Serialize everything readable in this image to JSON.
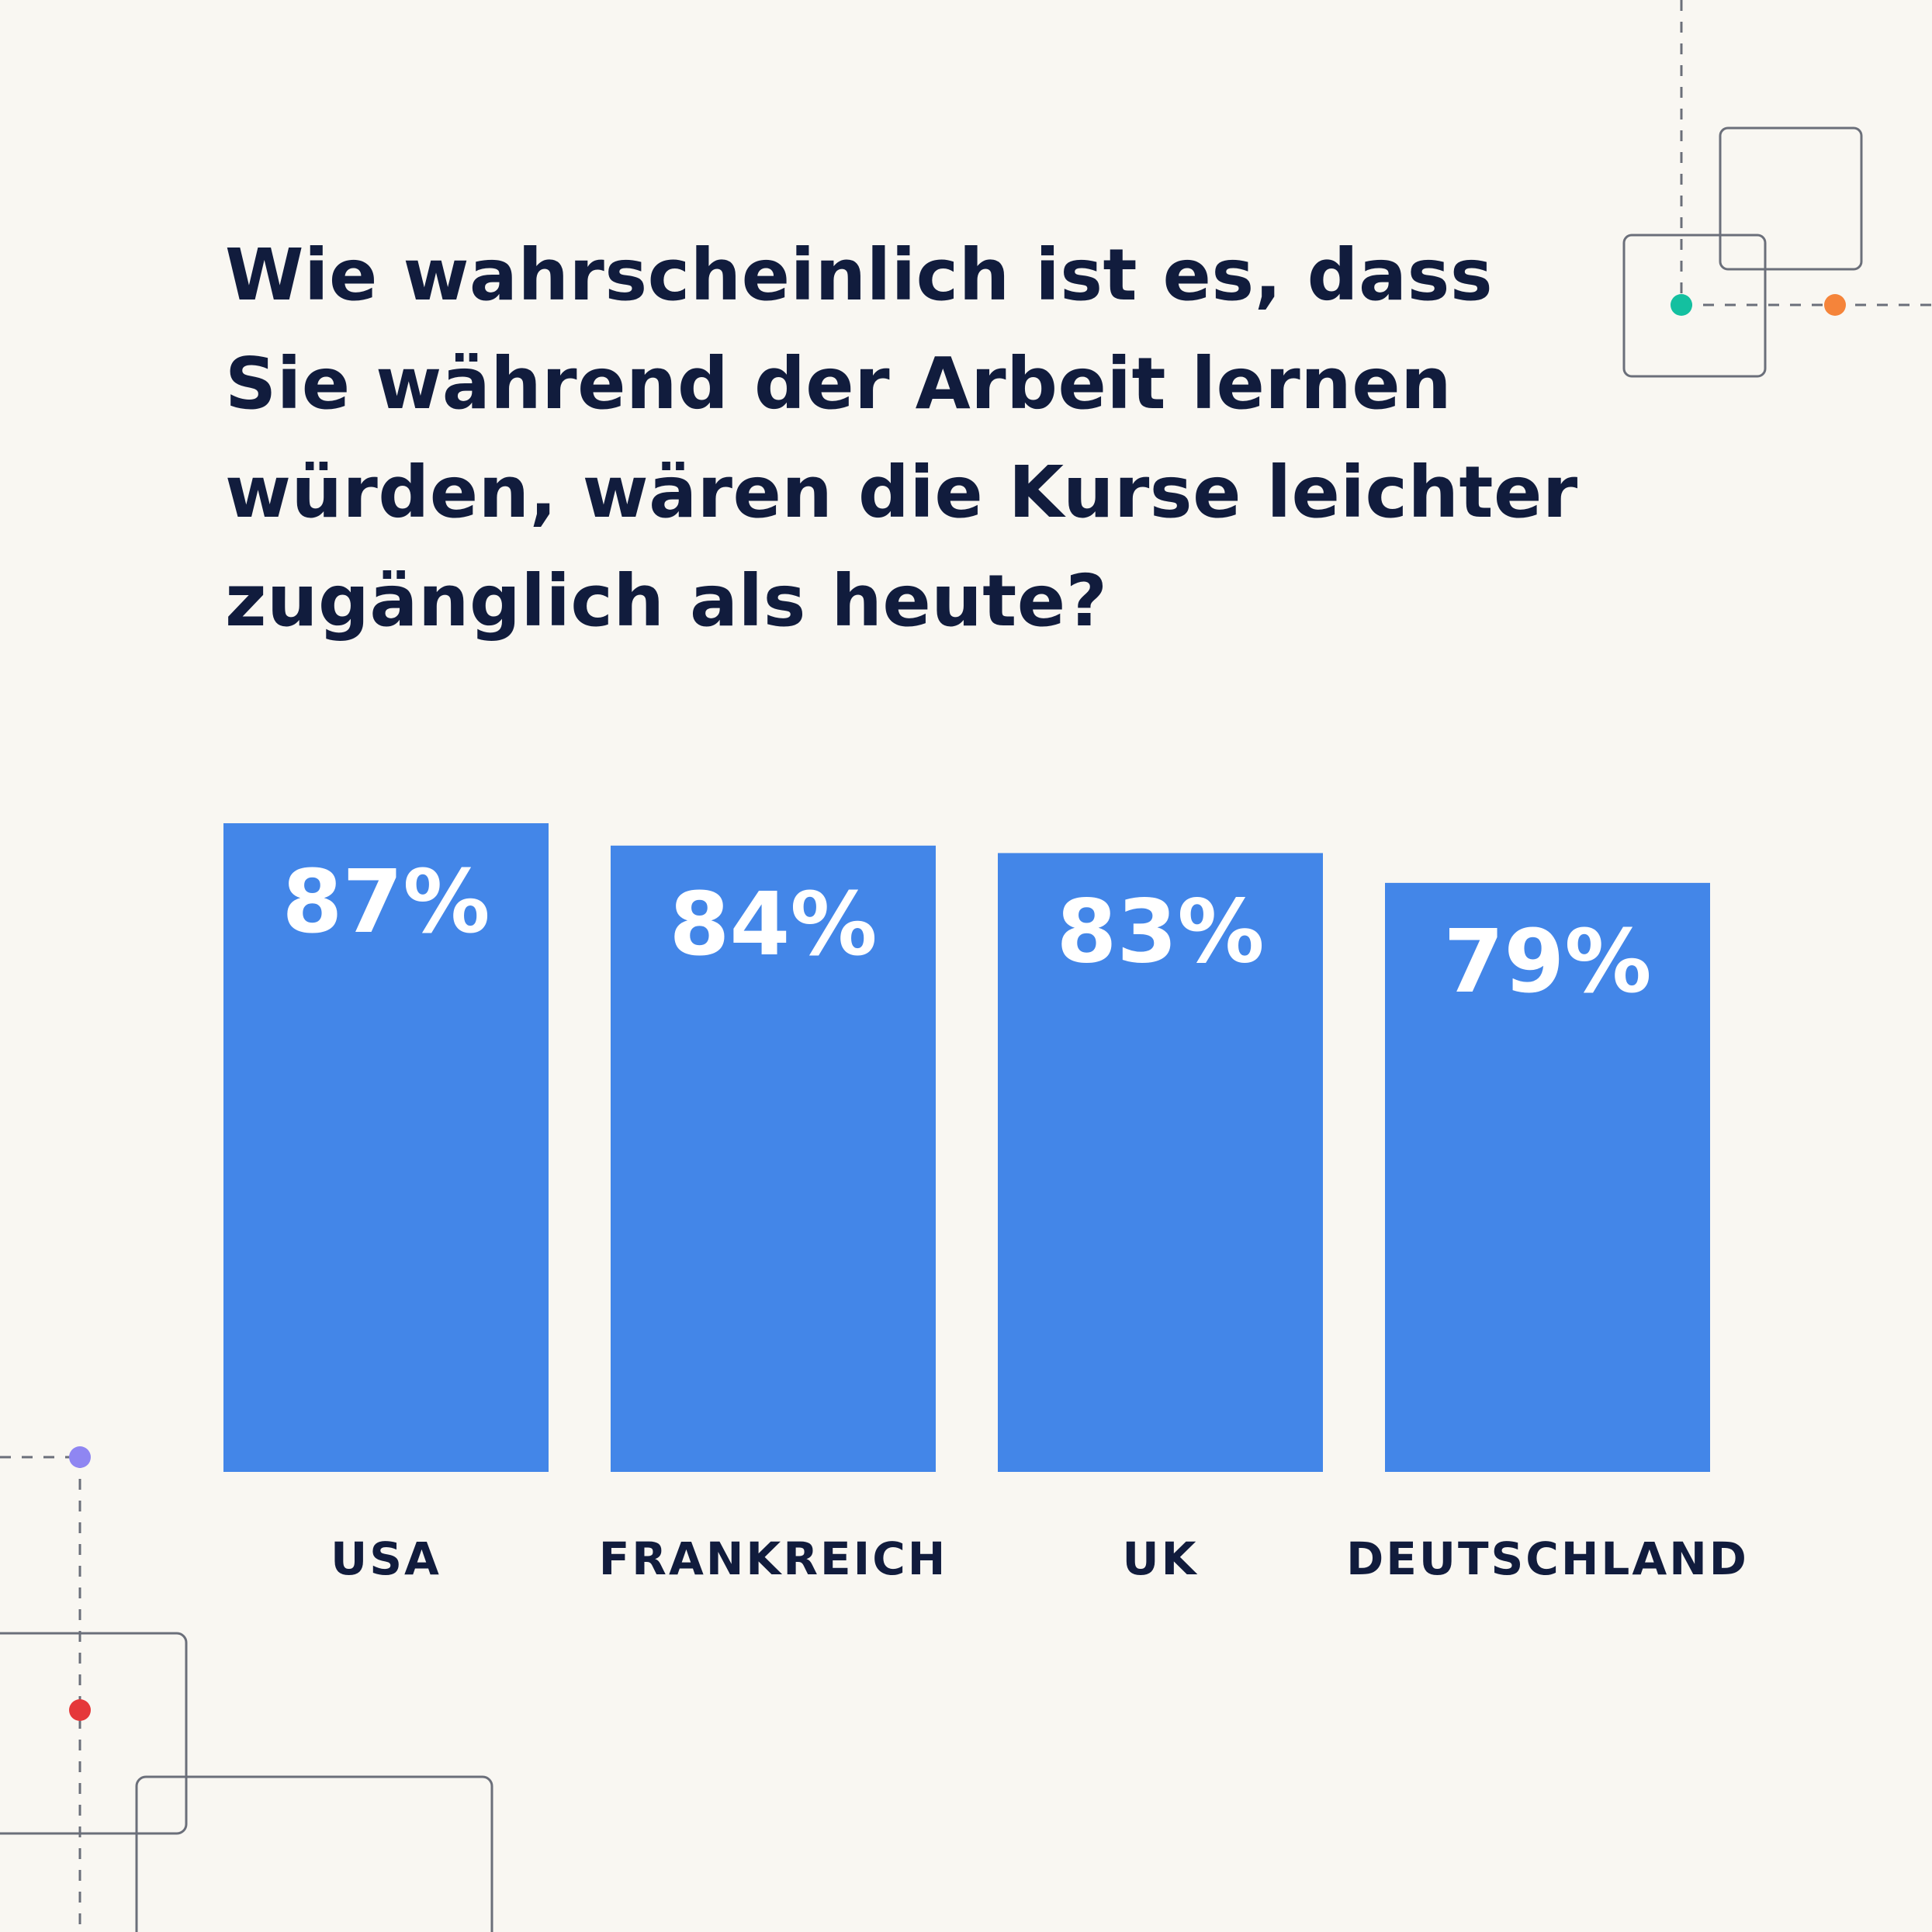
{
  "title": "Wie wahrscheinlich ist es, dass Sie während der Arbeit lernen würden, wären die Kurse leichter zugänglich als heute?",
  "colors": {
    "background": "#f9f7f2",
    "bar": "#4386e8",
    "text": "#111c3d",
    "dot_teal": "#14c0a0",
    "dot_orange": "#f5843a",
    "dot_purple": "#8f86f2",
    "dot_red": "#e5383a"
  },
  "chart_data": {
    "type": "bar",
    "title": "Wie wahrscheinlich ist es, dass Sie während der Arbeit lernen würden, wären die Kurse leichter zugänglich als heute?",
    "categories": [
      "USA",
      "FRANKREICH",
      "UK",
      "DEUTSCHLAND"
    ],
    "values": [
      87,
      84,
      83,
      79
    ],
    "data_labels": [
      "87%",
      "84%",
      "83%",
      "79%"
    ],
    "xlabel": "",
    "ylabel": "",
    "ylim": [
      0,
      87
    ],
    "grid": false,
    "legend": "none"
  }
}
